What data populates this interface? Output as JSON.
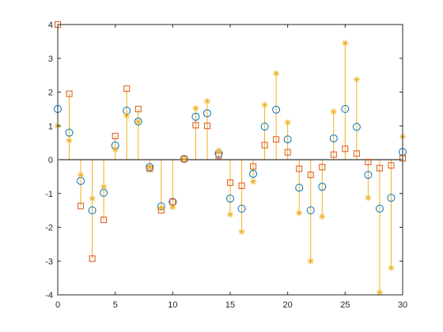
{
  "chart_data": {
    "type": "scatter",
    "title": "",
    "xlabel": "",
    "ylabel": "",
    "xlim": [
      0,
      30
    ],
    "ylim": [
      -4,
      4
    ],
    "xticks": [
      0,
      5,
      10,
      15,
      20,
      25,
      30
    ],
    "yticks": [
      -4,
      -3,
      -2,
      -1,
      0,
      1,
      2,
      3,
      4
    ],
    "grid": false,
    "legend": "none",
    "colors": {
      "axis": "#262626",
      "stem": "#EDB120",
      "circle": "#0072BD",
      "square": "#D95319",
      "star": "#EDB120"
    },
    "x": [
      0,
      1,
      2,
      3,
      4,
      5,
      6,
      7,
      8,
      9,
      10,
      11,
      12,
      13,
      14,
      15,
      16,
      17,
      18,
      19,
      20,
      21,
      22,
      23,
      24,
      25,
      26,
      27,
      28,
      29,
      30
    ],
    "series": [
      {
        "marker": "circle",
        "values": [
          1.5,
          0.8,
          -0.63,
          -1.5,
          -0.98,
          0.42,
          1.45,
          1.13,
          -0.22,
          -1.38,
          -1.25,
          0.02,
          1.27,
          1.37,
          0.18,
          -1.15,
          -1.45,
          -0.42,
          0.98,
          1.48,
          0.6,
          -0.83,
          -1.5,
          -0.8,
          0.63,
          1.5,
          0.97,
          -0.45,
          -1.45,
          -1.13,
          0.23
        ]
      },
      {
        "marker": "square",
        "values": [
          4.0,
          1.95,
          -1.37,
          -2.93,
          -1.78,
          0.7,
          2.1,
          1.5,
          -0.27,
          -1.5,
          -1.25,
          0.02,
          1.02,
          1.0,
          0.12,
          -0.68,
          -0.77,
          -0.2,
          0.43,
          0.6,
          0.22,
          -0.27,
          -0.45,
          -0.22,
          0.15,
          0.32,
          0.18,
          -0.07,
          -0.25,
          -0.17,
          0.04
        ]
      },
      {
        "marker": "star",
        "values": [
          1.0,
          0.57,
          -0.45,
          -1.15,
          -0.8,
          0.3,
          1.3,
          1.12,
          -0.23,
          -1.42,
          -1.4,
          0.02,
          1.52,
          1.73,
          0.27,
          -1.62,
          -2.13,
          -0.65,
          1.62,
          2.55,
          1.1,
          -1.58,
          -3.0,
          -1.68,
          1.42,
          3.45,
          2.37,
          -1.13,
          -3.92,
          -3.2,
          0.68
        ]
      }
    ]
  }
}
